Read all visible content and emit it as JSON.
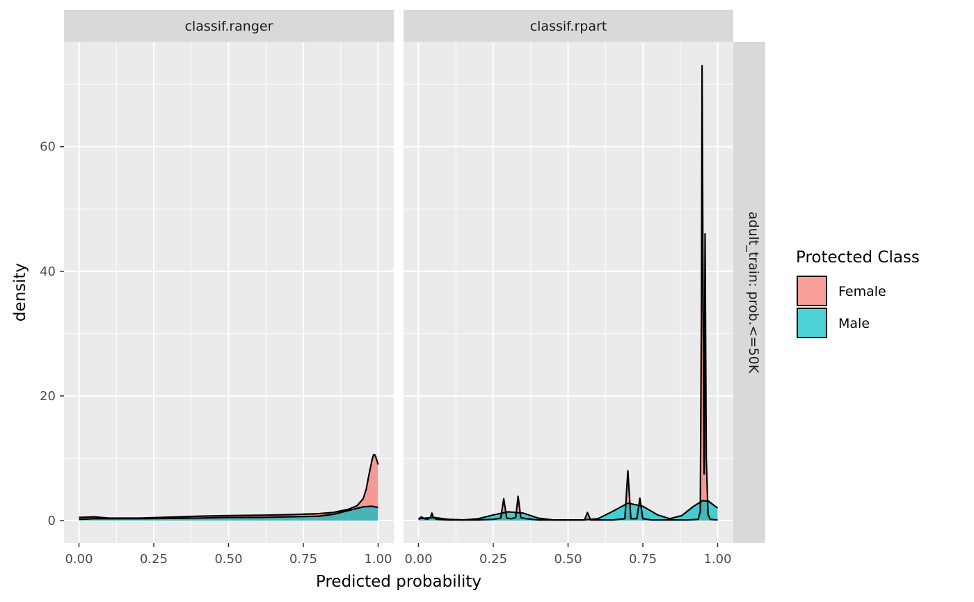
{
  "chart_data": {
    "type": "area",
    "subtype": "density",
    "xlabel": "Predicted probability",
    "ylabel": "density",
    "xlim": [
      0,
      1
    ],
    "ylim": [
      0,
      73
    ],
    "x_ticks": [
      0,
      0.25,
      0.5,
      0.75,
      1
    ],
    "x_tick_labels": [
      "0.00",
      "0.25",
      "0.50",
      "0.75",
      "1.00"
    ],
    "y_ticks": [
      0,
      20,
      40,
      60
    ],
    "y_tick_labels": [
      "0",
      "20",
      "40",
      "60"
    ],
    "row_strip": "adult_train: prob.<=50K",
    "grid": true,
    "legend": {
      "title": "Protected Class",
      "position": "right",
      "entries": [
        {
          "name": "Female",
          "color": "#F8766D"
        },
        {
          "name": "Male",
          "color": "#00BFC4"
        }
      ]
    },
    "panels": [
      {
        "name": "classif.ranger",
        "series": [
          {
            "name": "Female",
            "x": [
              0,
              0.05,
              0.1,
              0.2,
              0.3,
              0.4,
              0.5,
              0.6,
              0.7,
              0.8,
              0.85,
              0.9,
              0.93,
              0.95,
              0.96,
              0.97,
              0.98,
              0.985,
              0.99,
              0.995,
              1.0
            ],
            "y": [
              0.5,
              0.6,
              0.4,
              0.4,
              0.55,
              0.7,
              0.8,
              0.85,
              0.95,
              1.1,
              1.3,
              1.8,
              2.4,
              3.5,
              5.0,
              7.5,
              9.8,
              10.6,
              10.5,
              9.8,
              9.0
            ]
          },
          {
            "name": "Male",
            "x": [
              0,
              0.05,
              0.1,
              0.2,
              0.3,
              0.4,
              0.5,
              0.6,
              0.7,
              0.8,
              0.85,
              0.9,
              0.95,
              0.98,
              1.0
            ],
            "y": [
              0.2,
              0.3,
              0.3,
              0.3,
              0.35,
              0.4,
              0.5,
              0.5,
              0.6,
              0.7,
              1.0,
              1.6,
              2.2,
              2.3,
              2.1
            ]
          }
        ]
      },
      {
        "name": "classif.rpart",
        "series": [
          {
            "name": "Female",
            "x": [
              0,
              0.01,
              0.02,
              0.03,
              0.04,
              0.045,
              0.05,
              0.06,
              0.1,
              0.15,
              0.2,
              0.25,
              0.275,
              0.285,
              0.295,
              0.31,
              0.325,
              0.333,
              0.342,
              0.36,
              0.4,
              0.5,
              0.555,
              0.565,
              0.575,
              0.6,
              0.65,
              0.69,
              0.7,
              0.71,
              0.73,
              0.74,
              0.75,
              0.78,
              0.9,
              0.935,
              0.942,
              0.946,
              0.948,
              0.952,
              0.955,
              0.958,
              0.962,
              0.968,
              0.975,
              1.0
            ],
            "y": [
              0.2,
              0.6,
              0.3,
              0.2,
              0.5,
              1.2,
              0.5,
              0.2,
              0.1,
              0.1,
              0.1,
              0.2,
              0.4,
              3.5,
              0.4,
              0.3,
              0.5,
              3.9,
              0.5,
              0.3,
              0.1,
              0.1,
              0.1,
              1.3,
              0.1,
              0.1,
              0.1,
              0.3,
              8.0,
              0.3,
              0.3,
              3.6,
              0.3,
              0.1,
              0.1,
              0.2,
              1.5,
              35,
              73,
              30,
              7.5,
              46,
              10,
              1,
              0.2,
              0.1
            ]
          },
          {
            "name": "Male",
            "x": [
              0,
              0.05,
              0.1,
              0.15,
              0.2,
              0.25,
              0.3,
              0.35,
              0.4,
              0.45,
              0.5,
              0.55,
              0.6,
              0.65,
              0.7,
              0.75,
              0.8,
              0.84,
              0.88,
              0.92,
              0.95,
              0.97,
              1.0
            ],
            "y": [
              0.3,
              0.5,
              0.2,
              0.1,
              0.3,
              0.9,
              1.4,
              1.2,
              0.4,
              0.1,
              0.1,
              0.1,
              0.3,
              1.5,
              2.8,
              2.3,
              0.9,
              0.3,
              0.8,
              2.3,
              3.2,
              3.1,
              2.0
            ]
          }
        ]
      }
    ]
  }
}
